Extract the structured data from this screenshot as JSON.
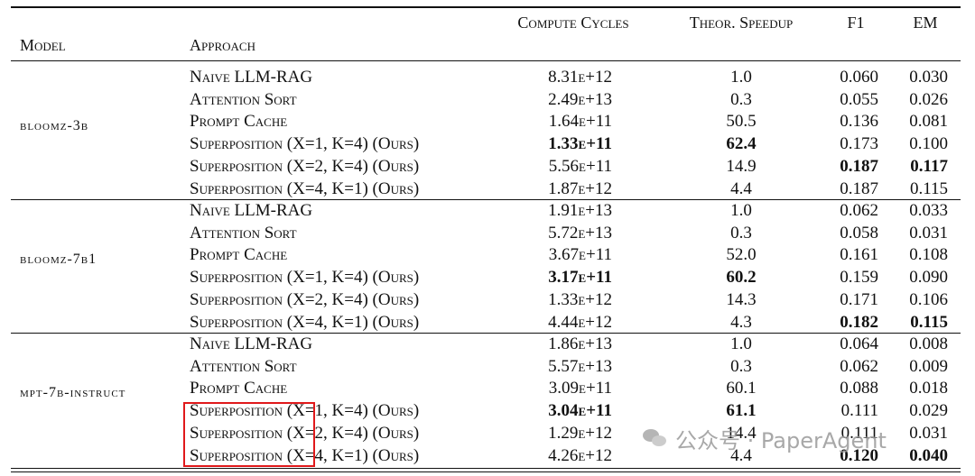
{
  "headers": {
    "model": "Model",
    "approach": "Approach",
    "compute_cycles": "Compute Cycles",
    "speedup": "Theor. Speedup",
    "f1": "F1",
    "em": "EM"
  },
  "groups": [
    {
      "model": "bloomz-3b",
      "rows": [
        {
          "approach": "Naive LLM-RAG",
          "cycles": "8.31e+12",
          "speedup": "1.0",
          "f1": "0.060",
          "em": "0.030",
          "bold": []
        },
        {
          "approach": "Attention Sort",
          "cycles": "2.49e+13",
          "speedup": "0.3",
          "f1": "0.055",
          "em": "0.026",
          "bold": []
        },
        {
          "approach": "Prompt Cache",
          "cycles": "1.64e+11",
          "speedup": "50.5",
          "f1": "0.136",
          "em": "0.081",
          "bold": []
        },
        {
          "approach": "Superposition (X=1, K=4) (Ours)",
          "cycles": "1.33e+11",
          "speedup": "62.4",
          "f1": "0.173",
          "em": "0.100",
          "bold": [
            "cycles",
            "speedup"
          ]
        },
        {
          "approach": "Superposition (X=2, K=4) (Ours)",
          "cycles": "5.56e+11",
          "speedup": "14.9",
          "f1": "0.187",
          "em": "0.117",
          "bold": [
            "f1",
            "em"
          ]
        },
        {
          "approach": "Superposition (X=4, K=1) (Ours)",
          "cycles": "1.87e+12",
          "speedup": "4.4",
          "f1": "0.187",
          "em": "0.115",
          "bold": []
        }
      ]
    },
    {
      "model": "bloomz-7b1",
      "rows": [
        {
          "approach": "Naive LLM-RAG",
          "cycles": "1.91e+13",
          "speedup": "1.0",
          "f1": "0.062",
          "em": "0.033",
          "bold": []
        },
        {
          "approach": "Attention Sort",
          "cycles": "5.72e+13",
          "speedup": "0.3",
          "f1": "0.058",
          "em": "0.031",
          "bold": []
        },
        {
          "approach": "Prompt Cache",
          "cycles": "3.67e+11",
          "speedup": "52.0",
          "f1": "0.161",
          "em": "0.108",
          "bold": []
        },
        {
          "approach": "Superposition (X=1, K=4) (Ours)",
          "cycles": "3.17e+11",
          "speedup": "60.2",
          "f1": "0.159",
          "em": "0.090",
          "bold": [
            "cycles",
            "speedup"
          ]
        },
        {
          "approach": "Superposition (X=2, K=4) (Ours)",
          "cycles": "1.33e+12",
          "speedup": "14.3",
          "f1": "0.171",
          "em": "0.106",
          "bold": []
        },
        {
          "approach": "Superposition (X=4, K=1) (Ours)",
          "cycles": "4.44e+12",
          "speedup": "4.3",
          "f1": "0.182",
          "em": "0.115",
          "bold": [
            "f1",
            "em"
          ]
        }
      ]
    },
    {
      "model": "mpt-7b-instruct",
      "rows": [
        {
          "approach": "Naive LLM-RAG",
          "cycles": "1.86e+13",
          "speedup": "1.0",
          "f1": "0.064",
          "em": "0.008",
          "bold": []
        },
        {
          "approach": "Attention Sort",
          "cycles": "5.57e+13",
          "speedup": "0.3",
          "f1": "0.062",
          "em": "0.009",
          "bold": []
        },
        {
          "approach": "Prompt Cache",
          "cycles": "3.09e+11",
          "speedup": "60.1",
          "f1": "0.088",
          "em": "0.018",
          "bold": []
        },
        {
          "approach": "Superposition (X=1, K=4) (Ours)",
          "cycles": "3.04e+11",
          "speedup": "61.1",
          "f1": "0.111",
          "em": "0.029",
          "bold": [
            "cycles",
            "speedup"
          ]
        },
        {
          "approach": "Superposition (X=2, K=4) (Ours)",
          "cycles": "1.29e+12",
          "speedup": "14.4",
          "f1": "0.111",
          "em": "0.031",
          "bold": []
        },
        {
          "approach": "Superposition (X=4, K=1) (Ours)",
          "cycles": "4.26e+12",
          "speedup": "4.4",
          "f1": "0.120",
          "em": "0.040",
          "bold": [
            "f1",
            "em"
          ]
        }
      ]
    }
  ],
  "highlight": {
    "color": "#e0191b"
  },
  "watermark": {
    "text": "公众号 · PaperAgent"
  }
}
